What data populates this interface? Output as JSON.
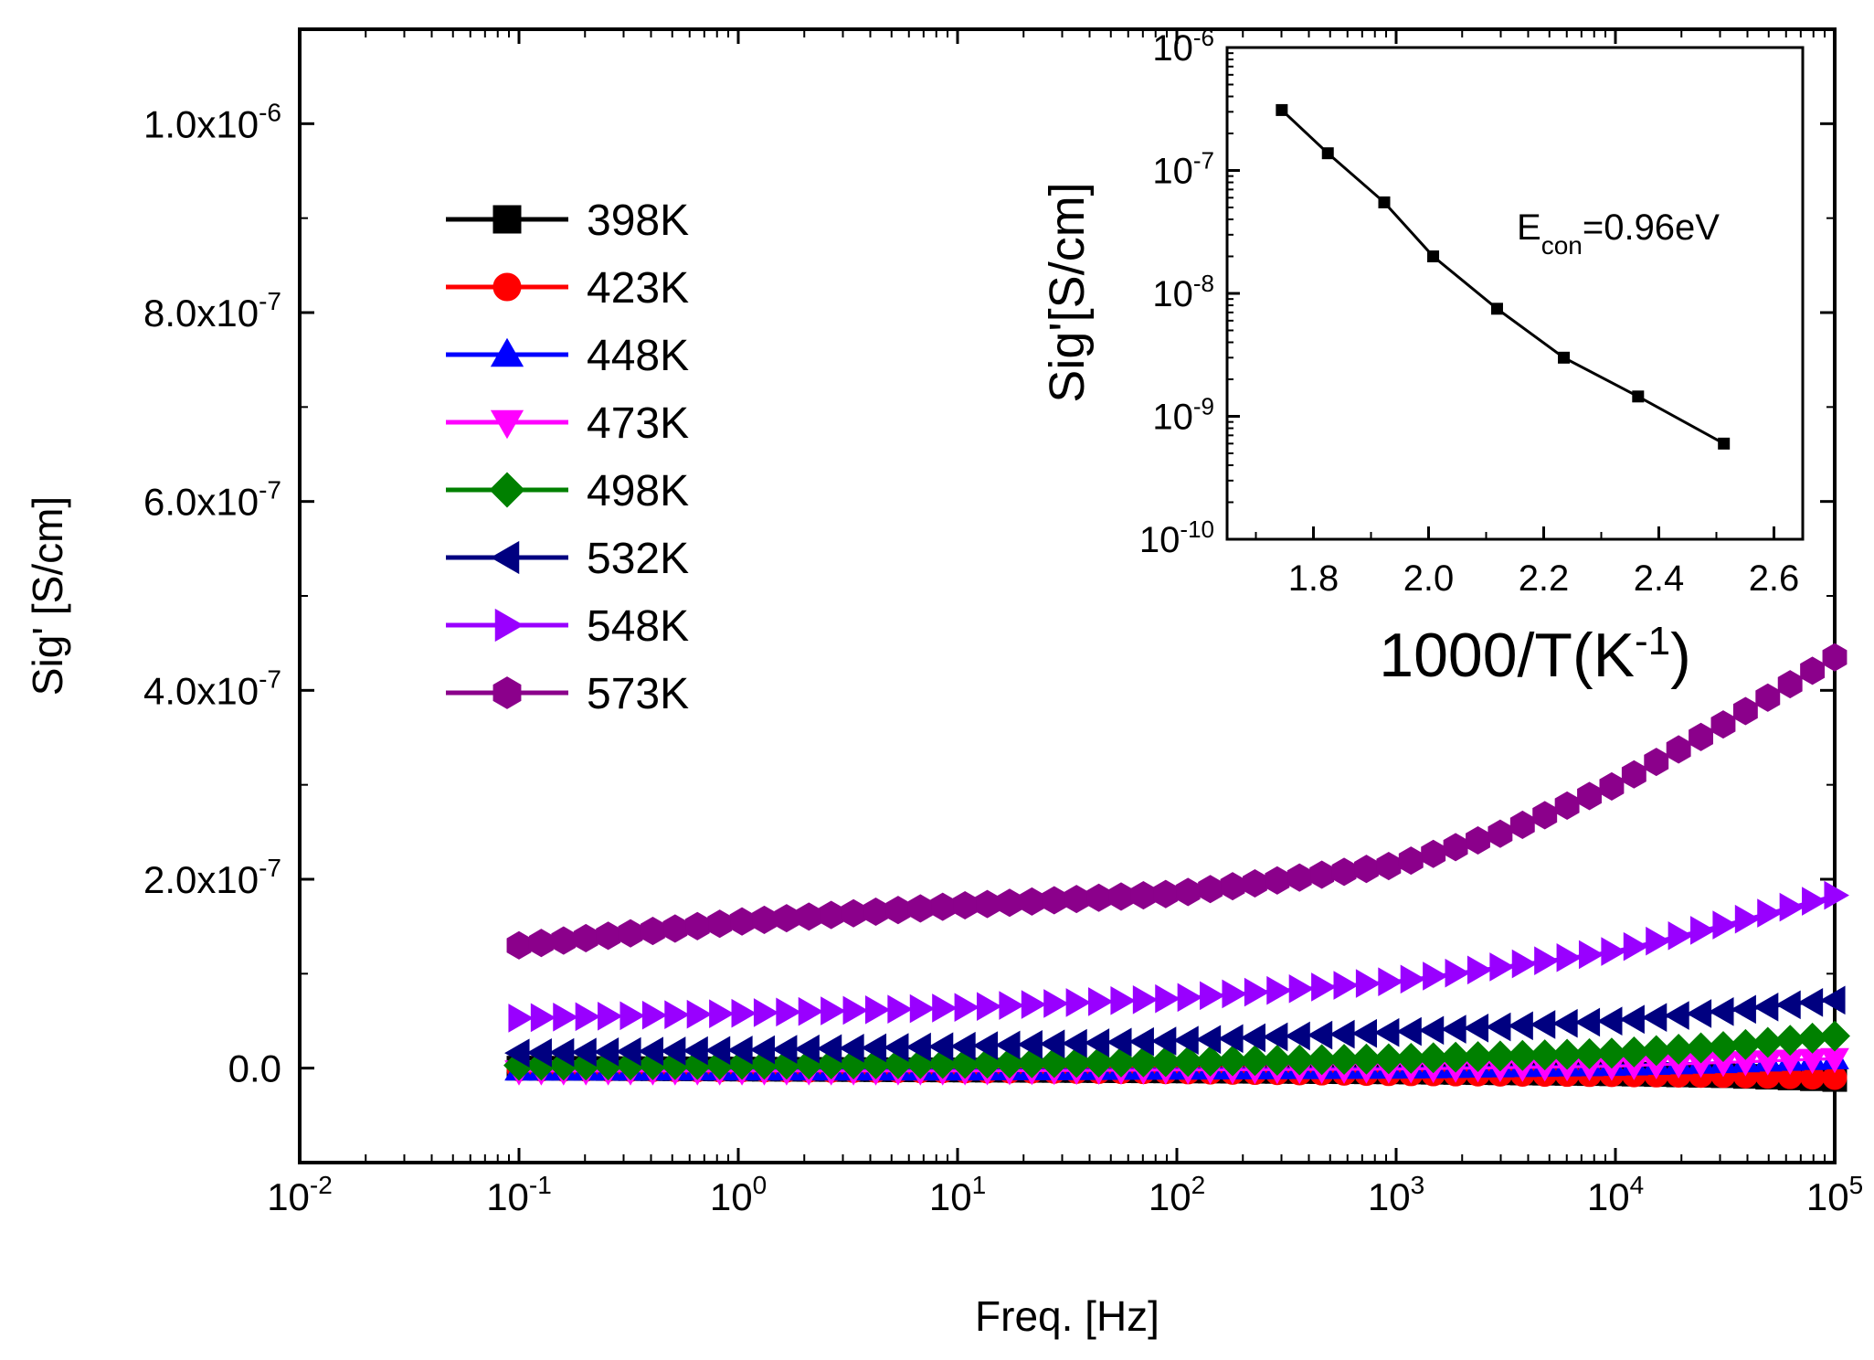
{
  "chart_data": [
    {
      "type": "scatter",
      "title": "",
      "xlabel": "Freq. [Hz]",
      "ylabel": "Sig' [S/cm]",
      "x_scale": "log",
      "xlim": [
        0.01,
        100000
      ],
      "ylim": [
        -1e-07,
        1.1e-06
      ],
      "x_tick_labels": [
        {
          "base": "10",
          "exp": "-2"
        },
        {
          "base": "10",
          "exp": "-1"
        },
        {
          "base": "10",
          "exp": "0"
        },
        {
          "base": "10",
          "exp": "1"
        },
        {
          "base": "10",
          "exp": "2"
        },
        {
          "base": "10",
          "exp": "3"
        },
        {
          "base": "10",
          "exp": "4"
        },
        {
          "base": "10",
          "exp": "5"
        }
      ],
      "y_tick_labels": [
        {
          "value": 0,
          "mant": "0.0",
          "exp": ""
        },
        {
          "value": 2e-07,
          "mant": "2.0x10",
          "exp": "-7"
        },
        {
          "value": 4e-07,
          "mant": "4.0x10",
          "exp": "-7"
        },
        {
          "value": 6e-07,
          "mant": "6.0x10",
          "exp": "-7"
        },
        {
          "value": 8e-07,
          "mant": "8.0x10",
          "exp": "-7"
        },
        {
          "value": 1e-06,
          "mant": "1.0x10",
          "exp": "-6"
        }
      ],
      "legend_position": "upper-left",
      "x_range_log10": [
        -1,
        5
      ],
      "points_per_series": 60,
      "series": [
        {
          "name": "398K",
          "color": "#000000",
          "marker": "square",
          "log10f": [
            -1,
            0,
            1,
            2,
            3,
            4,
            4.5,
            5
          ],
          "sigma": [
            0,
            -1e-09,
            -2e-09,
            -3e-09,
            -4e-09,
            -6e-09,
            -8e-09,
            -1.2e-08
          ]
        },
        {
          "name": "423K",
          "color": "#ff0000",
          "marker": "circle",
          "log10f": [
            -1,
            0,
            1,
            2,
            3,
            4,
            4.5,
            5
          ],
          "sigma": [
            -1e-09,
            -2e-09,
            -3e-09,
            -4e-09,
            -6e-09,
            -7e-09,
            -8e-09,
            -1e-08
          ]
        },
        {
          "name": "448K",
          "color": "#0000ff",
          "marker": "triangle-up",
          "log10f": [
            -1,
            0,
            1,
            2,
            3,
            4,
            4.5,
            5
          ],
          "sigma": [
            -2e-09,
            -2e-09,
            -2e-09,
            -1e-09,
            0,
            3e-09,
            6e-09,
            1e-08
          ]
        },
        {
          "name": "473K",
          "color": "#ff00ff",
          "marker": "triangle-down",
          "log10f": [
            -1,
            0,
            1,
            2,
            3,
            4,
            4.5,
            5
          ],
          "sigma": [
            -3e-09,
            -3e-09,
            -3e-09,
            -2e-09,
            -1e-09,
            2e-09,
            6e-09,
            1e-08
          ]
        },
        {
          "name": "498K",
          "color": "#008000",
          "marker": "diamond",
          "log10f": [
            -1,
            0,
            1,
            2,
            3,
            4,
            4.5,
            5
          ],
          "sigma": [
            3e-09,
            4e-09,
            5e-09,
            7e-09,
            1e-08,
            1.6e-08,
            2.3e-08,
            3.4e-08
          ]
        },
        {
          "name": "532K",
          "color": "#000080",
          "marker": "triangle-left",
          "log10f": [
            -1,
            0,
            1,
            2,
            3,
            4,
            4.5,
            5
          ],
          "sigma": [
            1.6e-08,
            1.9e-08,
            2.3e-08,
            2.9e-08,
            3.8e-08,
            5e-08,
            6e-08,
            7.2e-08
          ]
        },
        {
          "name": "548K",
          "color": "#9900ff",
          "marker": "triangle-right",
          "log10f": [
            -1,
            0,
            1,
            2,
            3,
            4,
            4.5,
            5
          ],
          "sigma": [
            5.3e-08,
            5.8e-08,
            6.4e-08,
            7.4e-08,
            9.2e-08,
            1.24e-07,
            1.52e-07,
            1.83e-07
          ]
        },
        {
          "name": "573K",
          "color": "#8b008b",
          "marker": "hexagon",
          "log10f": [
            -1,
            0,
            1,
            2,
            3,
            3.5,
            4,
            4.5,
            5
          ],
          "sigma": [
            1.3e-07,
            1.55e-07,
            1.72e-07,
            1.85e-07,
            2.15e-07,
            2.5e-07,
            3e-07,
            3.65e-07,
            4.35e-07
          ]
        }
      ]
    },
    {
      "type": "line",
      "title": "",
      "xlabel": {
        "main": "1000/T(K",
        "sup": "-1",
        "tail": ")"
      },
      "ylabel": "Sig'[S/cm]",
      "y_scale": "log",
      "xlim": [
        1.65,
        2.65
      ],
      "ylim": [
        1e-10,
        1e-06
      ],
      "x_tick_labels": [
        "1.8",
        "2.0",
        "2.2",
        "2.4",
        "2.6"
      ],
      "y_tick_labels": [
        {
          "base": "10",
          "exp": "-6"
        },
        {
          "base": "10",
          "exp": "-7"
        },
        {
          "base": "10",
          "exp": "-8"
        },
        {
          "base": "10",
          "exp": "-9"
        },
        {
          "base": "10",
          "exp": "-10"
        }
      ],
      "annotation": {
        "prefix": "E",
        "sub": "con",
        "suffix": "=0.96eV"
      },
      "series": [
        {
          "name": "Sig'",
          "color": "#000000",
          "marker": "square",
          "x": [
            1.745,
            1.825,
            1.923,
            2.008,
            2.119,
            2.235,
            2.364,
            2.513
          ],
          "y": [
            3.1e-07,
            1.38e-07,
            5.5e-08,
            2e-08,
            7.5e-09,
            3e-09,
            1.45e-09,
            6e-10
          ]
        }
      ]
    }
  ]
}
